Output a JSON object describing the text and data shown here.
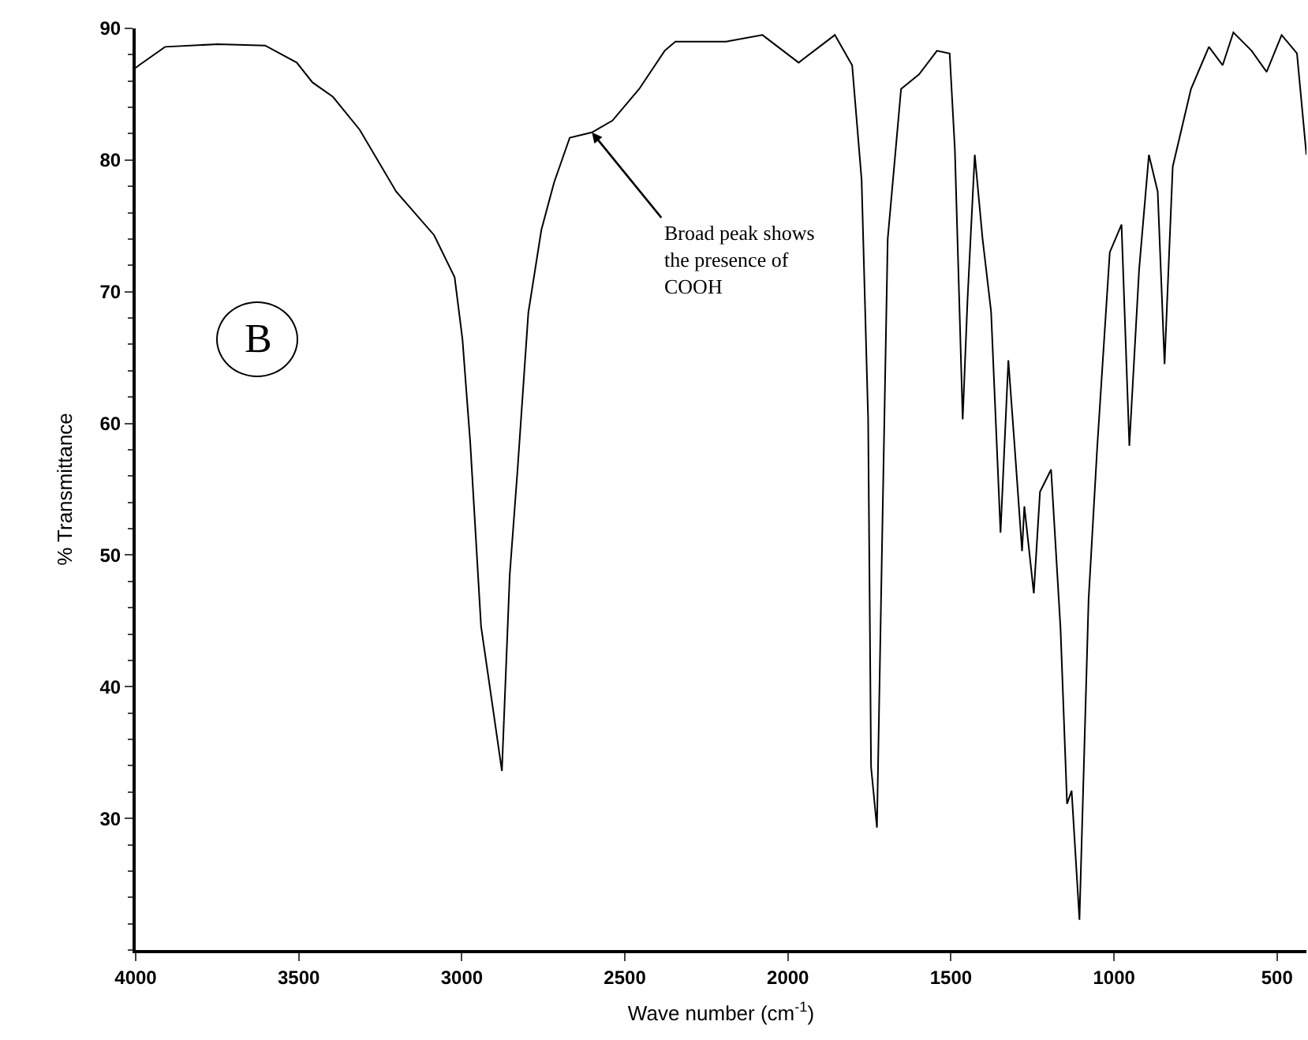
{
  "chart_data": {
    "type": "line",
    "xlabel": "Wave number (cm$^{-1}$)",
    "ylabel": "% Transmittance",
    "color": "#000000",
    "x": [
      4000,
      3990,
      3910,
      3748,
      3603,
      3506,
      3458,
      3395,
      3313,
      3201,
      3085,
      3022,
      2998,
      2974,
      2941,
      2906,
      2877,
      2853,
      2829,
      2796,
      2756,
      2717,
      2669,
      2601,
      2538,
      2456,
      2378,
      2345,
      2214,
      2190,
      2078,
      1967,
      1856,
      1803,
      1774,
      1754,
      1745,
      1727,
      1711,
      1694,
      1653,
      1598,
      1543,
      1504,
      1488,
      1464,
      1449,
      1427,
      1403,
      1377,
      1348,
      1324,
      1304,
      1282,
      1275,
      1246,
      1227,
      1193,
      1164,
      1144,
      1130,
      1106,
      1078,
      1052,
      1013,
      977,
      953,
      923,
      893,
      866,
      845,
      820,
      764,
      709,
      667,
      634,
      578,
      532,
      486,
      439,
      410
    ],
    "values": [
      87,
      87.2,
      88.6,
      88.8,
      88.7,
      87.4,
      85.9,
      84.8,
      82.3,
      77.6,
      74.3,
      71.1,
      66.4,
      58.5,
      44.6,
      38.6,
      33.6,
      48.5,
      56.5,
      68.4,
      74.7,
      78.3,
      81.7,
      82.1,
      83,
      85.4,
      88.3,
      89,
      89,
      89,
      89.5,
      87.4,
      89.5,
      87.2,
      78.5,
      60.3,
      33.9,
      29.3,
      51.2,
      74,
      85.4,
      86.5,
      88.3,
      88.1,
      80.8,
      60.3,
      69.5,
      80.4,
      74,
      68.5,
      51.7,
      64.8,
      58,
      50.3,
      53.7,
      47.1,
      54.8,
      56.5,
      44.4,
      31.1,
      32.1,
      22.3,
      46.6,
      58,
      73,
      75.1,
      58.3,
      71.7,
      80.4,
      77.6,
      64.5,
      79.5,
      85.4,
      88.6,
      87.2,
      89.7,
      88.3,
      86.7,
      89.5,
      88.1,
      80.4
    ],
    "xlim": [
      4000,
      410
    ],
    "xticks": [
      4000,
      3500,
      3000,
      2500,
      2000,
      1500,
      1000,
      500
    ],
    "ylim": [
      20,
      90
    ],
    "yticks": [
      30,
      40,
      50,
      60,
      70,
      80,
      90
    ],
    "annotations": [
      {
        "text": "Broad peak shows\nthe presence of\nCOOH",
        "x": 2601,
        "y": 82.1
      },
      "B"
    ]
  }
}
